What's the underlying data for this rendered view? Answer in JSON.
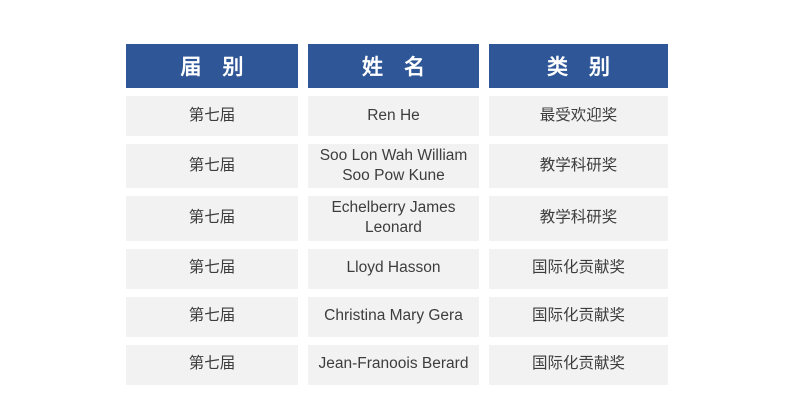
{
  "theme": {
    "page_bg": "#FFFFFF",
    "header_bg": "#2F5797",
    "header_text": "#FFFFFF",
    "row_bg": "#F2F2F2",
    "body_text": "#3D3D3D"
  },
  "table": {
    "header": {
      "columns": [
        "届　别",
        "姓　名",
        "类　别"
      ]
    },
    "rows": [
      {
        "session": "第七届",
        "name": "Ren He",
        "category": "最受欢迎奖"
      },
      {
        "session": "第七届",
        "name": "Soo Lon Wah William Soo Pow Kune",
        "category": "教学科研奖"
      },
      {
        "session": "第七届",
        "name": "Echelberry James Leonard",
        "category": "教学科研奖"
      },
      {
        "session": "第七届",
        "name": "Lloyd Hasson",
        "category": "国际化贡献奖"
      },
      {
        "session": "第七届",
        "name": "Christina Mary Gera",
        "category": "国际化贡献奖"
      },
      {
        "session": "第七届",
        "name": "Jean-Franoois Berard",
        "category": "国际化贡献奖"
      }
    ]
  }
}
